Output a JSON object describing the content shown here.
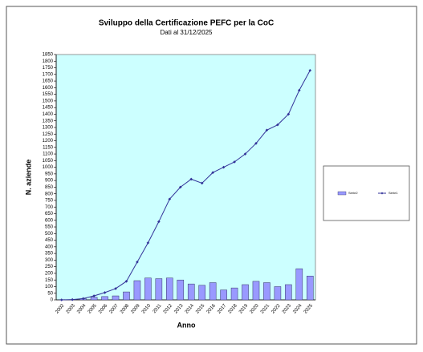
{
  "chart_data": {
    "type": "combo",
    "title": "Sviluppo della Certificazione PEFC per la CoC",
    "subtitle": "Dati al 31/12/2025",
    "y_label": "N. aziende",
    "x_label": "Anno",
    "categories": [
      "2002",
      "2003",
      "2004",
      "2005",
      "2006",
      "2007",
      "2008",
      "2009",
      "2010",
      "2011",
      "2012",
      "2013",
      "2014",
      "2015",
      "2016",
      "2017",
      "2018",
      "2019",
      "2020",
      "2021",
      "2022",
      "2023",
      "2024",
      "2025"
    ],
    "series": [
      {
        "name": "Serie2",
        "type": "bar",
        "color": "#9999ff",
        "values": [
          2,
          2,
          8,
          20,
          25,
          30,
          60,
          145,
          165,
          160,
          165,
          150,
          120,
          110,
          130,
          75,
          90,
          115,
          140,
          130,
          100,
          115,
          235,
          180
        ]
      },
      {
        "name": "Serie1",
        "type": "line",
        "color": "#333399",
        "values": [
          0,
          2,
          10,
          30,
          55,
          85,
          140,
          285,
          430,
          590,
          760,
          850,
          910,
          880,
          960,
          1000,
          1040,
          1100,
          1180,
          1280,
          1320,
          1400,
          1580,
          1730
        ]
      }
    ],
    "ylim": [
      0,
      1850
    ],
    "yticks": [
      0,
      50,
      100,
      150,
      200,
      250,
      300,
      350,
      400,
      450,
      500,
      550,
      600,
      650,
      700,
      750,
      800,
      850,
      900,
      950,
      1000,
      1050,
      1100,
      1150,
      1200,
      1250,
      1300,
      1350,
      1400,
      1450,
      1500,
      1550,
      1600,
      1650,
      1700,
      1750,
      1800,
      1850
    ],
    "grid": false,
    "plot_background": "#ccffff",
    "legend": "right"
  }
}
